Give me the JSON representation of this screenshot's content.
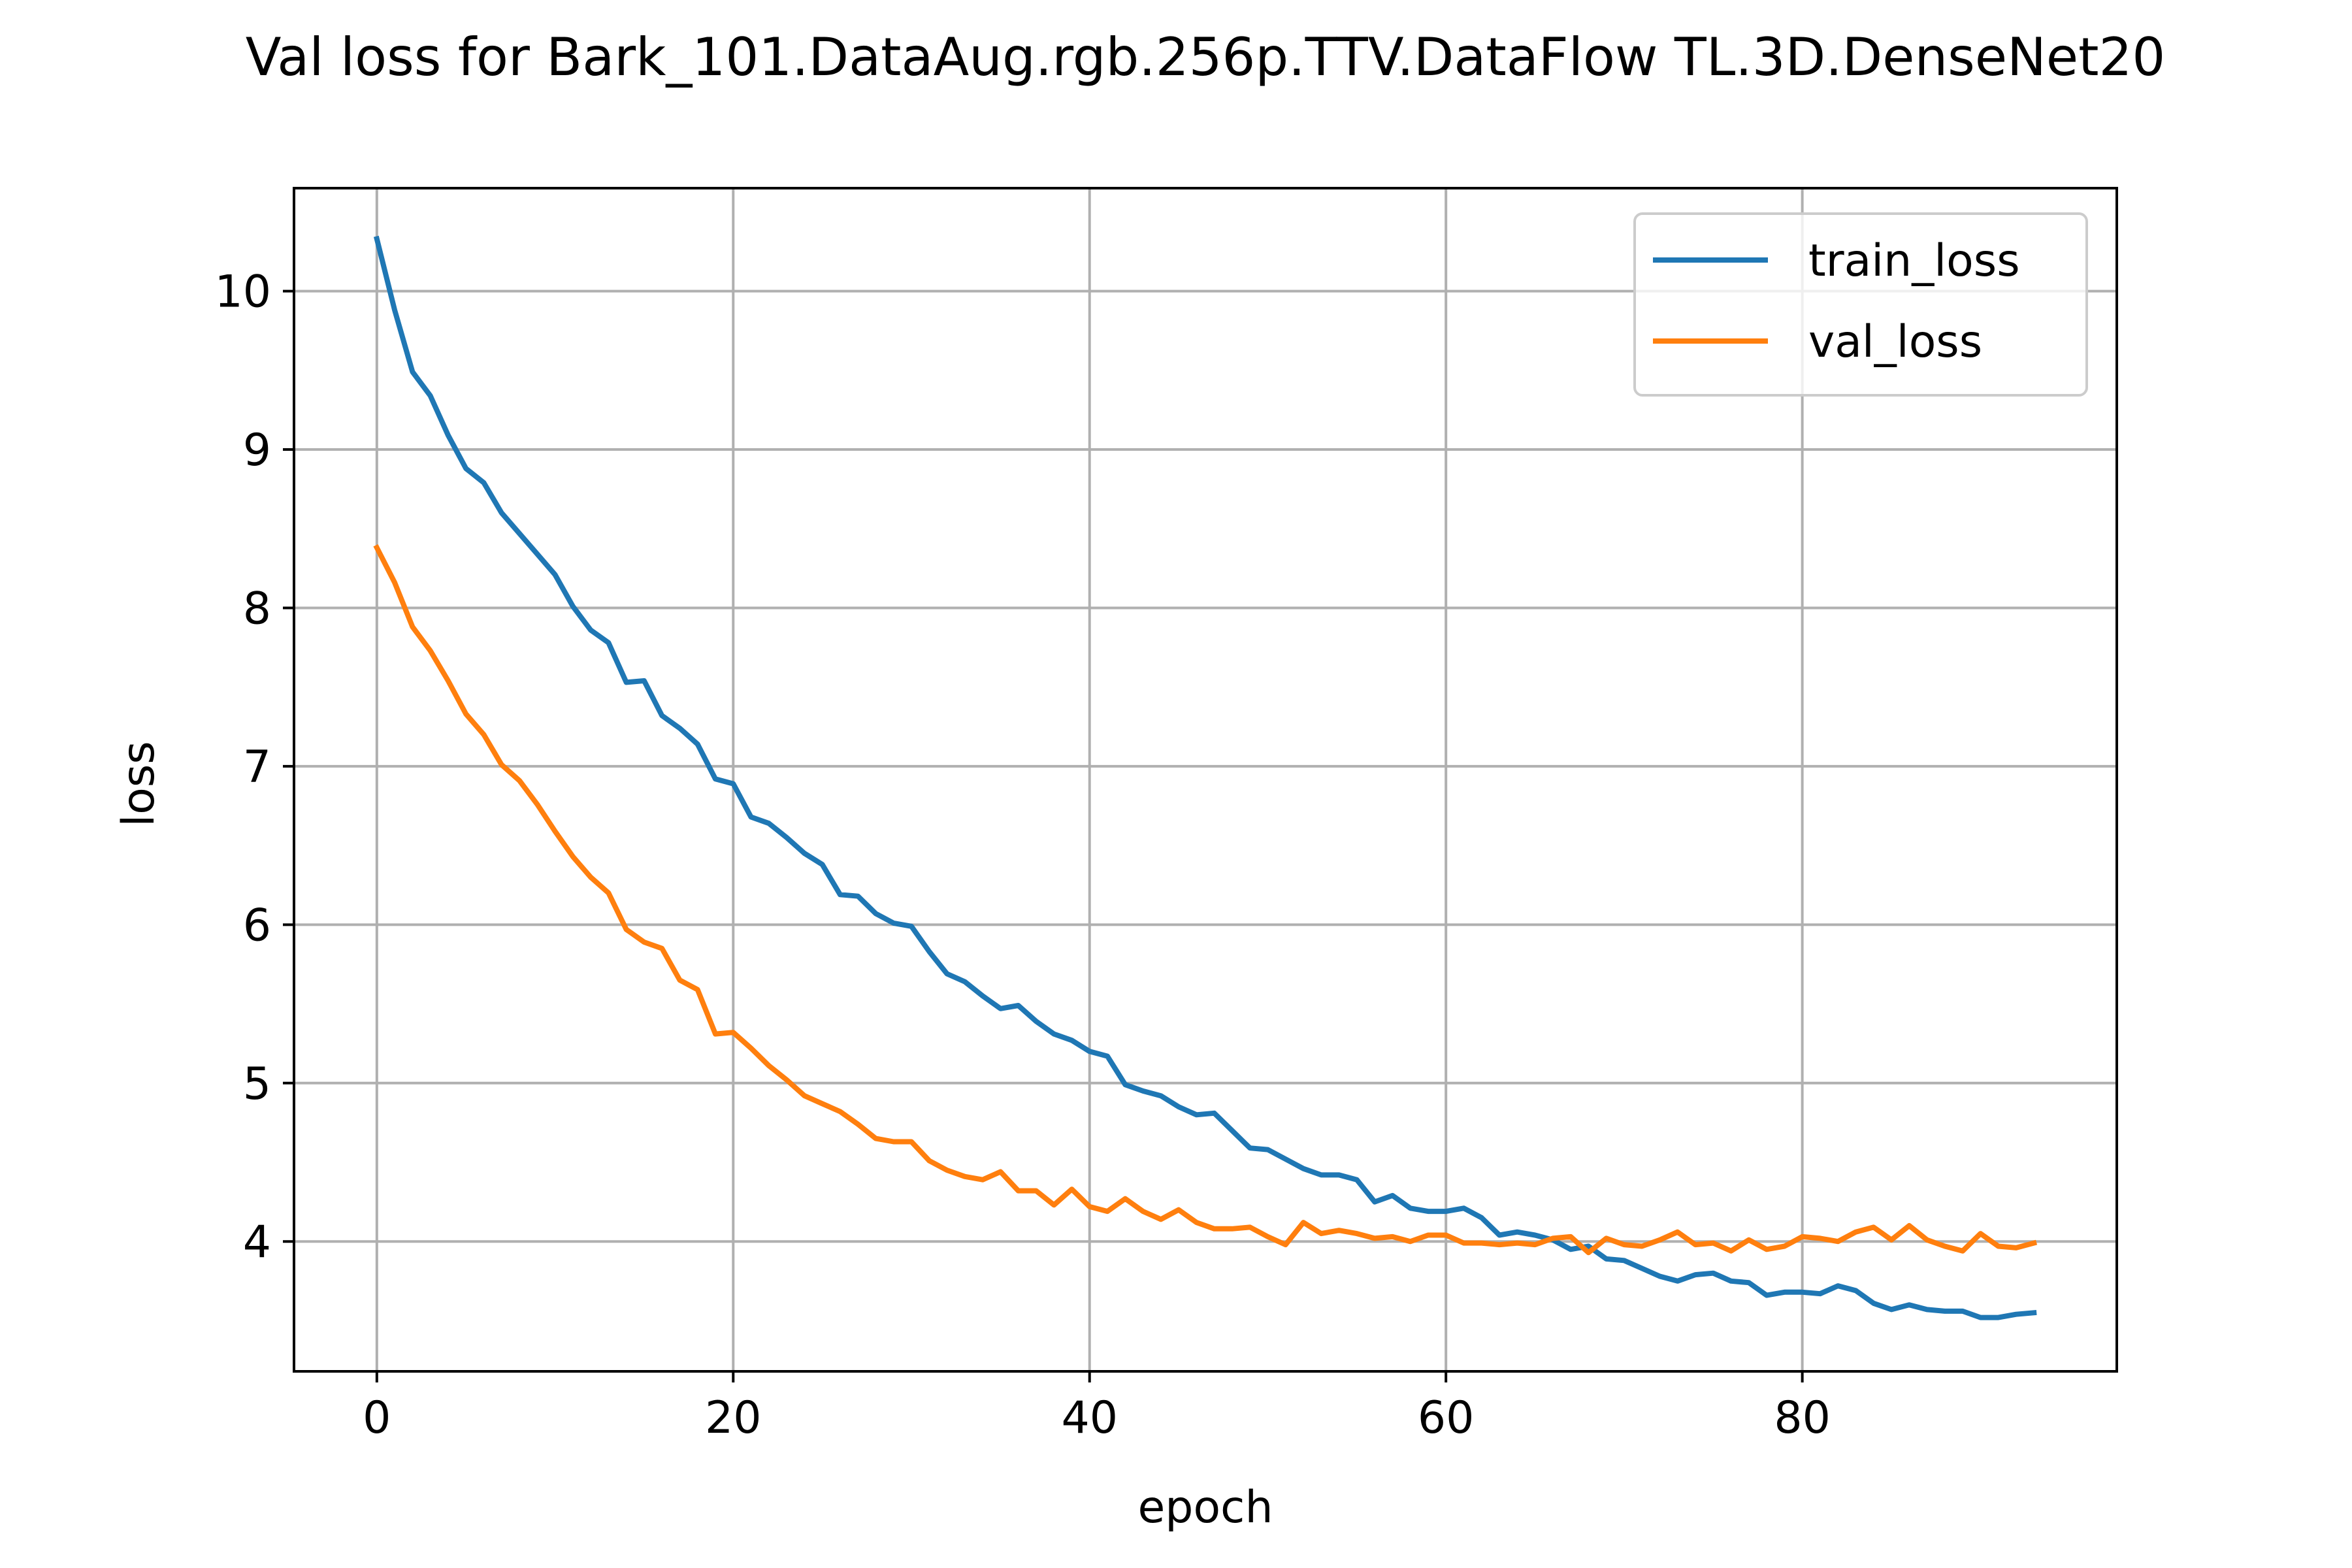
{
  "chart_data": {
    "type": "line",
    "title": "Val loss for Bark_101.DataAug.rgb.256p.TTV.DataFlow TL.3D.DenseNet20",
    "xlabel": "epoch",
    "ylabel": "loss",
    "xlim": [
      -4.65,
      97.65
    ],
    "ylim": [
      3.18,
      10.65
    ],
    "xticks": [
      0,
      20,
      40,
      60,
      80
    ],
    "yticks": [
      4,
      5,
      6,
      7,
      8,
      9,
      10
    ],
    "xtick_labels": [
      "0",
      "20",
      "40",
      "60",
      "80"
    ],
    "ytick_labels": [
      "4",
      "5",
      "6",
      "7",
      "8",
      "9",
      "10"
    ],
    "grid": true,
    "legend_position": "top-right",
    "series": [
      {
        "name": "train_loss",
        "color": "#1f77b4",
        "values": [
          10.33,
          9.88,
          9.49,
          9.34,
          9.09,
          8.88,
          8.79,
          8.6,
          8.47,
          8.34,
          8.21,
          8.01,
          7.86,
          7.78,
          7.53,
          7.54,
          7.32,
          7.24,
          7.14,
          6.92,
          6.89,
          6.68,
          6.64,
          6.55,
          6.45,
          6.38,
          6.19,
          6.18,
          6.07,
          6.01,
          5.99,
          5.83,
          5.69,
          5.64,
          5.55,
          5.47,
          5.49,
          5.39,
          5.31,
          5.27,
          5.2,
          5.17,
          4.99,
          4.95,
          4.92,
          4.85,
          4.8,
          4.81,
          4.7,
          4.59,
          4.58,
          4.52,
          4.46,
          4.42,
          4.42,
          4.39,
          4.25,
          4.29,
          4.21,
          4.19,
          4.19,
          4.21,
          4.15,
          4.04,
          4.06,
          4.04,
          4.01,
          3.95,
          3.97,
          3.89,
          3.88,
          3.83,
          3.78,
          3.75,
          3.79,
          3.8,
          3.75,
          3.74,
          3.66,
          3.68,
          3.68,
          3.67,
          3.72,
          3.69,
          3.61,
          3.57,
          3.6,
          3.57,
          3.56,
          3.56,
          3.52,
          3.52,
          3.54,
          3.55
        ]
      },
      {
        "name": "val_loss",
        "color": "#ff7f0e",
        "values": [
          8.38,
          8.16,
          7.88,
          7.73,
          7.54,
          7.33,
          7.2,
          7.01,
          6.91,
          6.76,
          6.59,
          6.43,
          6.3,
          6.2,
          5.97,
          5.89,
          5.85,
          5.65,
          5.59,
          5.31,
          5.32,
          5.22,
          5.11,
          5.02,
          4.92,
          4.87,
          4.82,
          4.74,
          4.65,
          4.63,
          4.63,
          4.51,
          4.45,
          4.41,
          4.39,
          4.44,
          4.32,
          4.32,
          4.23,
          4.33,
          4.22,
          4.19,
          4.27,
          4.19,
          4.14,
          4.2,
          4.12,
          4.08,
          4.08,
          4.09,
          4.03,
          3.98,
          4.12,
          4.05,
          4.07,
          4.05,
          4.02,
          4.03,
          4.0,
          4.04,
          4.04,
          3.99,
          3.99,
          3.98,
          3.99,
          3.98,
          4.02,
          4.03,
          3.93,
          4.02,
          3.98,
          3.97,
          4.01,
          4.06,
          3.98,
          3.99,
          3.94,
          4.01,
          3.95,
          3.97,
          4.03,
          4.02,
          4.0,
          4.06,
          4.09,
          4.01,
          4.1,
          4.01,
          3.97,
          3.94,
          4.05,
          3.97,
          3.96,
          3.99
        ]
      }
    ]
  }
}
